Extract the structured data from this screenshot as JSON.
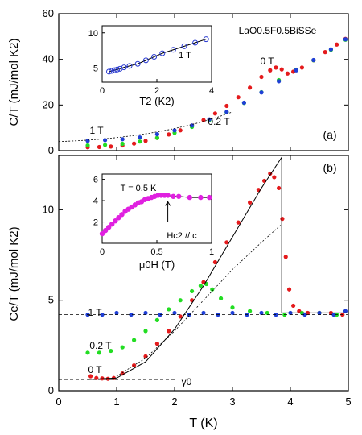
{
  "chart_data": [
    {
      "panel": "(a)",
      "type": "scatter",
      "sample_label": "LaO0.5F0.5BiSSe",
      "ylabel": "C/T (mJ/mol K2)",
      "xlim": [
        0,
        5
      ],
      "ylim": [
        0,
        60
      ],
      "yticks": [
        0,
        20,
        40,
        60
      ],
      "xticks": [
        0,
        1,
        2,
        3,
        4,
        5
      ],
      "grid": false,
      "series": [
        {
          "name": "0 T",
          "color": "#e41a1c",
          "points": [
            [
              0.5,
              1.5
            ],
            [
              0.7,
              1.6
            ],
            [
              0.9,
              1.8
            ],
            [
              1.1,
              2.3
            ],
            [
              1.3,
              3.1
            ],
            [
              1.5,
              4.3
            ],
            [
              1.7,
              5.6
            ],
            [
              1.9,
              7.1
            ],
            [
              2.1,
              8.9
            ],
            [
              2.3,
              11.0
            ],
            [
              2.5,
              13.4
            ],
            [
              2.7,
              16.3
            ],
            [
              2.9,
              19.6
            ],
            [
              3.1,
              23.4
            ],
            [
              3.3,
              27.6
            ],
            [
              3.5,
              32.3
            ],
            [
              3.65,
              35.2
            ],
            [
              3.75,
              36.4
            ],
            [
              3.85,
              35.6
            ],
            [
              3.95,
              33.8
            ],
            [
              4.05,
              34.6
            ],
            [
              4.2,
              36.4
            ],
            [
              4.4,
              39.6
            ],
            [
              4.6,
              43.2
            ],
            [
              4.8,
              46.5
            ],
            [
              4.95,
              49.0
            ]
          ]
        },
        {
          "name": "0.2 T",
          "color": "#22dd22",
          "points": [
            [
              0.5,
              2.3
            ],
            [
              0.8,
              2.5
            ],
            [
              1.1,
              3.0
            ],
            [
              1.4,
              4.0
            ],
            [
              1.7,
              5.6
            ],
            [
              2.0,
              7.8
            ],
            [
              2.3,
              10.4
            ],
            [
              2.6,
              13.4
            ],
            [
              2.9,
              16.8
            ],
            [
              3.2,
              20.9
            ],
            [
              3.5,
              25.6
            ],
            [
              3.8,
              30.9
            ],
            [
              4.1,
              35.5
            ],
            [
              4.4,
              39.6
            ],
            [
              4.7,
              44.2
            ],
            [
              4.95,
              48.6
            ]
          ]
        },
        {
          "name": "1 T",
          "color": "#1f3fd6",
          "points": [
            [
              0.5,
              4.3
            ],
            [
              0.8,
              4.6
            ],
            [
              1.1,
              5.0
            ],
            [
              1.4,
              5.8
            ],
            [
              1.7,
              7.2
            ],
            [
              2.0,
              8.9
            ],
            [
              2.3,
              11.0
            ],
            [
              2.6,
              13.7
            ],
            [
              2.9,
              17.0
            ],
            [
              3.2,
              21.0
            ],
            [
              3.5,
              25.5
            ],
            [
              3.8,
              30.4
            ],
            [
              4.1,
              35.2
            ],
            [
              4.4,
              39.7
            ],
            [
              4.7,
              44.4
            ],
            [
              4.95,
              48.8
            ]
          ]
        }
      ],
      "labels": {
        "zero": "0 T",
        "low": "0.2 T",
        "high": "1 T"
      },
      "inset": {
        "xlabel": "T2 (K2)",
        "label": "1 T",
        "xticks": [
          0,
          2,
          4
        ],
        "yticks": [
          5,
          10
        ],
        "xlim": [
          0,
          4
        ],
        "ylim": [
          3,
          11
        ],
        "x": [
          0.25,
          0.35,
          0.45,
          0.55,
          0.65,
          0.8,
          1.0,
          1.3,
          1.6,
          1.9,
          2.2,
          2.6,
          3.0,
          3.4,
          3.8
        ],
        "y": [
          4.5,
          4.6,
          4.7,
          4.8,
          4.9,
          5.1,
          5.3,
          5.6,
          6.1,
          6.6,
          7.1,
          7.6,
          8.1,
          8.6,
          9.1
        ]
      }
    },
    {
      "panel": "(b)",
      "type": "scatter",
      "xlabel": "T (K)",
      "ylabel": "Ce/T (mJ/mol K2)",
      "xlim": [
        0,
        5
      ],
      "ylim": [
        0,
        13
      ],
      "yticks": [
        0,
        5,
        10
      ],
      "xticks": [
        0,
        1,
        2,
        3,
        4,
        5
      ],
      "gamma_label": "γ0",
      "series": [
        {
          "name": "0 T",
          "color": "#e41a1c",
          "points": [
            [
              0.55,
              0.8
            ],
            [
              0.65,
              0.7
            ],
            [
              0.75,
              0.68
            ],
            [
              0.85,
              0.66
            ],
            [
              0.95,
              0.7
            ],
            [
              1.1,
              0.95
            ],
            [
              1.3,
              1.4
            ],
            [
              1.5,
              1.9
            ],
            [
              1.7,
              2.6
            ],
            [
              1.9,
              3.3
            ],
            [
              2.1,
              4.1
            ],
            [
              2.3,
              5.0
            ],
            [
              2.5,
              6.0
            ],
            [
              2.7,
              7.1
            ],
            [
              2.9,
              8.2
            ],
            [
              3.1,
              9.3
            ],
            [
              3.3,
              10.4
            ],
            [
              3.45,
              11.1
            ],
            [
              3.55,
              11.6
            ],
            [
              3.65,
              12.0
            ],
            [
              3.72,
              11.8
            ],
            [
              3.8,
              11.2
            ],
            [
              3.86,
              9.5
            ],
            [
              3.92,
              7.4
            ],
            [
              3.98,
              5.6
            ],
            [
              4.05,
              4.7
            ],
            [
              4.15,
              4.4
            ],
            [
              4.3,
              4.3
            ],
            [
              4.5,
              4.3
            ],
            [
              4.7,
              4.3
            ],
            [
              4.9,
              4.2
            ]
          ]
        },
        {
          "name": "0.2 T",
          "color": "#22dd22",
          "points": [
            [
              0.5,
              2.1
            ],
            [
              0.7,
              2.1
            ],
            [
              0.9,
              2.2
            ],
            [
              1.1,
              2.4
            ],
            [
              1.3,
              2.8
            ],
            [
              1.5,
              3.3
            ],
            [
              1.7,
              3.9
            ],
            [
              1.9,
              4.5
            ],
            [
              2.1,
              5.0
            ],
            [
              2.3,
              5.5
            ],
            [
              2.45,
              5.8
            ],
            [
              2.55,
              5.9
            ],
            [
              2.65,
              5.6
            ],
            [
              2.8,
              5.1
            ],
            [
              3.0,
              4.6
            ],
            [
              3.3,
              4.4
            ],
            [
              3.6,
              4.3
            ],
            [
              3.9,
              4.2
            ],
            [
              4.2,
              4.3
            ],
            [
              4.5,
              4.3
            ],
            [
              4.8,
              4.2
            ]
          ]
        },
        {
          "name": "1 T",
          "color": "#1f3fd6",
          "points": [
            [
              0.5,
              4.2
            ],
            [
              0.75,
              4.2
            ],
            [
              1.0,
              4.3
            ],
            [
              1.25,
              4.2
            ],
            [
              1.5,
              4.3
            ],
            [
              1.75,
              4.2
            ],
            [
              2.0,
              4.3
            ],
            [
              2.25,
              4.2
            ],
            [
              2.5,
              4.3
            ],
            [
              2.75,
              4.2
            ],
            [
              3.0,
              4.3
            ],
            [
              3.25,
              4.2
            ],
            [
              3.5,
              4.3
            ],
            [
              3.75,
              4.2
            ],
            [
              4.0,
              4.3
            ],
            [
              4.25,
              4.2
            ],
            [
              4.5,
              4.3
            ],
            [
              4.75,
              4.2
            ],
            [
              4.95,
              4.4
            ]
          ]
        }
      ],
      "labels": {
        "zero": "0 T",
        "low": "0.2 T",
        "high": "1 T"
      },
      "inset": {
        "xlabel": "μ0H (T)",
        "title": "T = 0.5 K",
        "arrow_label": "Hc2 // c",
        "xticks": [
          0,
          0.5,
          1
        ],
        "yticks": [
          2,
          4,
          6
        ],
        "xlim": [
          0,
          1
        ],
        "ylim": [
          0,
          6.5
        ],
        "x": [
          0,
          0.03,
          0.06,
          0.09,
          0.12,
          0.15,
          0.18,
          0.21,
          0.24,
          0.27,
          0.3,
          0.33,
          0.36,
          0.39,
          0.42,
          0.45,
          0.48,
          0.51,
          0.54,
          0.57,
          0.6,
          0.65,
          0.7,
          0.8,
          0.9,
          0.98
        ],
        "y": [
          0.9,
          1.2,
          1.5,
          1.8,
          2.1,
          2.4,
          2.7,
          3.0,
          3.2,
          3.4,
          3.6,
          3.8,
          3.9,
          4.1,
          4.2,
          4.3,
          4.4,
          4.5,
          4.5,
          4.5,
          4.5,
          4.4,
          4.4,
          4.3,
          4.3,
          4.3
        ]
      }
    }
  ],
  "axes": {
    "tick_labels_x": [
      "0",
      "1",
      "2",
      "3",
      "4",
      "5"
    ]
  }
}
